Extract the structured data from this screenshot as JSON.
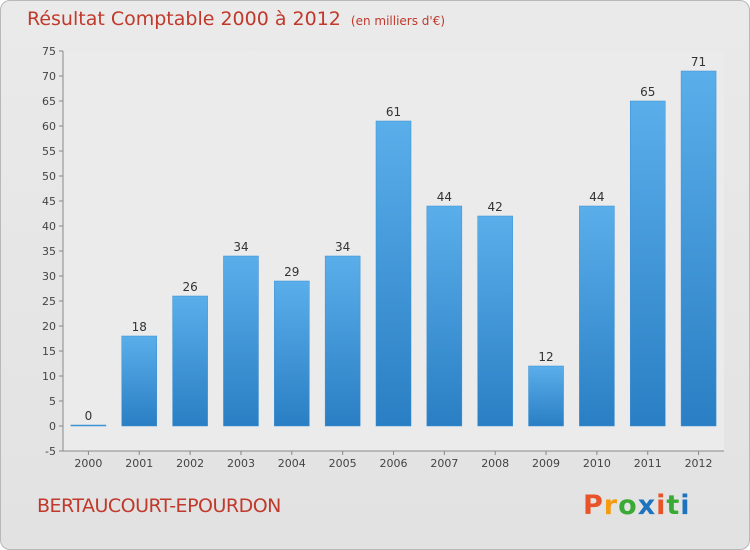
{
  "chart_data": {
    "type": "bar",
    "title": "Résultat Comptable 2000 à 2012",
    "subtitle": "(en milliers d'€)",
    "categories": [
      "2000",
      "2001",
      "2002",
      "2003",
      "2004",
      "2005",
      "2006",
      "2007",
      "2008",
      "2009",
      "2010",
      "2011",
      "2012"
    ],
    "values": [
      0,
      18,
      26,
      34,
      29,
      34,
      61,
      44,
      42,
      12,
      44,
      65,
      71
    ],
    "ylim": [
      -5,
      75
    ],
    "yticks": [
      -5,
      0,
      5,
      10,
      15,
      20,
      25,
      30,
      35,
      40,
      45,
      50,
      55,
      60,
      65,
      70,
      75
    ],
    "grid": false,
    "bar_color": "#4a9ee0"
  },
  "footer": {
    "commune": "BERTAUCOURT-EPOURDON",
    "logo": [
      "P",
      "r",
      "o",
      "x",
      "i",
      "t",
      "i"
    ],
    "logo_colors": [
      "#e8532a",
      "#f39c12",
      "#3aaa35",
      "#1e73be",
      "#e8532a",
      "#3aaa35",
      "#1e73be"
    ]
  }
}
